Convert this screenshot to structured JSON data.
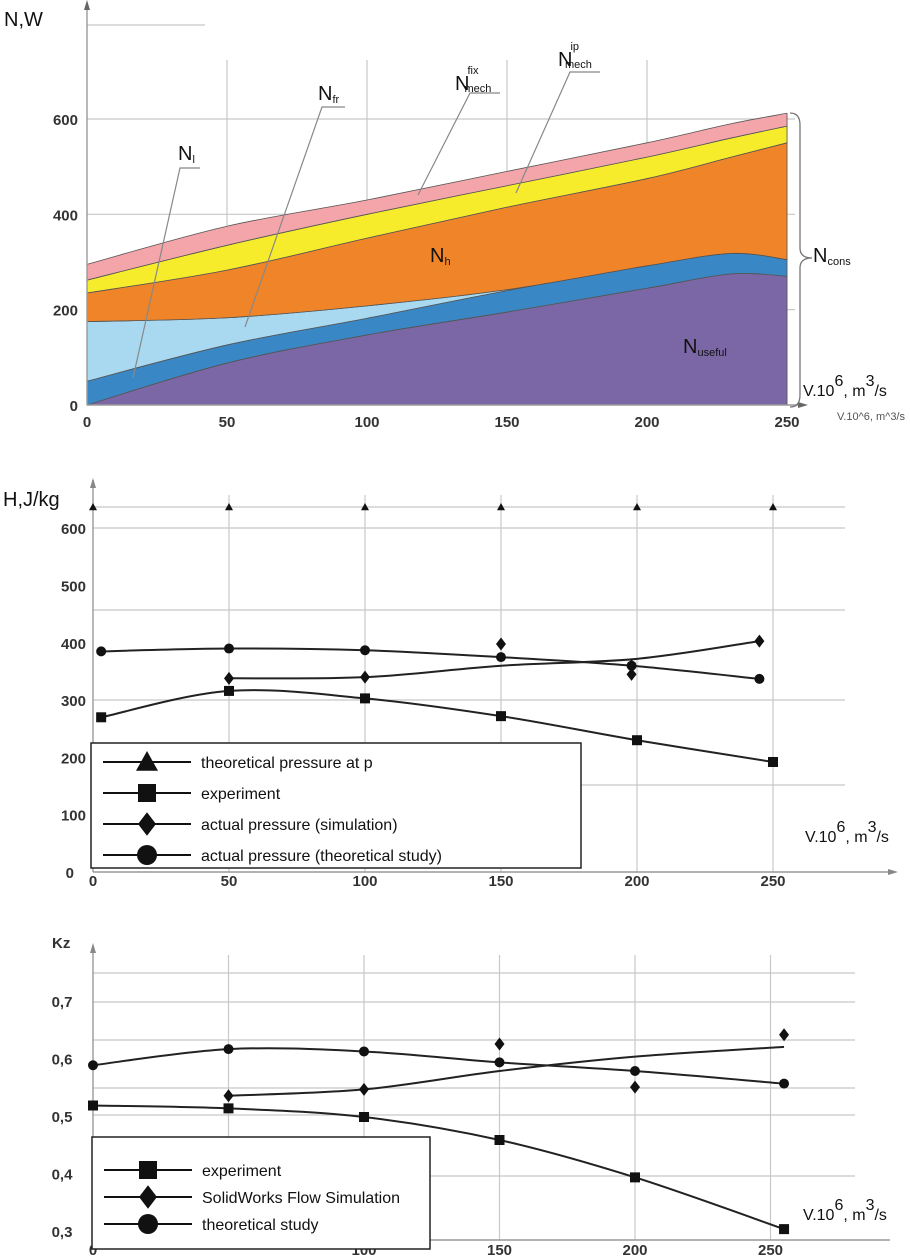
{
  "chart_data": [
    {
      "type": "area",
      "title": "",
      "ylabel": "N,W",
      "xlabel": "V.10^6, m^3/s",
      "xlabel_parts": {
        "a": "V.10",
        "b": "6",
        "c": ", m",
        "d": "3",
        "e": "/s"
      },
      "xlim": [
        0,
        250
      ],
      "ylim": [
        0,
        600
      ],
      "x_ticks": [
        "0",
        "50",
        "100",
        "150",
        "200",
        "250"
      ],
      "y_ticks": [
        "0",
        "200",
        "400",
        "600"
      ],
      "x": [
        0,
        50,
        100,
        150,
        200,
        230,
        250
      ],
      "stacked_upper_boundaries": [
        {
          "name": "N_useful",
          "label": "N",
          "sub": "useful",
          "color": "#7b67a5",
          "values": [
            0,
            88,
            147,
            195,
            245,
            275,
            270
          ]
        },
        {
          "name": "N_l",
          "label": "N",
          "sub": "l",
          "color": "#3a87c5",
          "values": [
            50,
            126,
            182,
            240,
            292,
            318,
            305
          ]
        },
        {
          "name": "N_fr",
          "label": "N",
          "sub": "fr",
          "color": "#a9d9f0",
          "values": [
            175,
            183,
            208,
            242,
            292,
            318,
            305
          ]
        },
        {
          "name": "N_h",
          "label": "N",
          "sub": "h",
          "color": "#f08428",
          "values": [
            235,
            283,
            350,
            415,
            475,
            520,
            550
          ]
        },
        {
          "name": "N_mech_ip",
          "label": "N",
          "sub": "mech",
          "sup": "ip",
          "color": "#f7ec2c",
          "values": [
            262,
            335,
            400,
            460,
            520,
            560,
            585
          ]
        },
        {
          "name": "N_mech_fix",
          "label": "N",
          "sub": "mech",
          "sup": "fix",
          "color": "#f3a5a9",
          "values": [
            295,
            375,
            430,
            490,
            550,
            590,
            612
          ]
        }
      ],
      "bracket_label": {
        "label": "N",
        "sub": "cons"
      }
    },
    {
      "type": "line",
      "ylabel": "H,J/kg",
      "xlabel_parts": {
        "a": "V.10",
        "b": "6",
        "c": ", m",
        "d": "3",
        "e": "/s"
      },
      "xlim": [
        0,
        250
      ],
      "ylim": [
        0,
        600
      ],
      "x_ticks": [
        "0",
        "50",
        "100",
        "150",
        "200",
        "250"
      ],
      "y_ticks": [
        "0",
        "100",
        "200",
        "300",
        "400",
        "500",
        "600"
      ],
      "series": [
        {
          "name": "theoretical pressure at p",
          "marker": "triangle",
          "x": [
            0,
            50,
            100,
            150,
            200,
            250
          ],
          "y": [
            637,
            637,
            637,
            637,
            637,
            637
          ],
          "curve": false
        },
        {
          "name": "experiment",
          "marker": "square",
          "x": [
            3,
            50,
            100,
            150,
            200,
            250
          ],
          "y": [
            270,
            316,
            303,
            272,
            230,
            192
          ],
          "curve": true
        },
        {
          "name": "actual pressure (simulation)",
          "marker": "diamond",
          "x": [
            50,
            100,
            150,
            198,
            198,
            245
          ],
          "y": [
            338,
            340,
            398,
            360,
            345,
            403
          ],
          "curve_x": [
            50,
            100,
            150,
            200,
            245
          ],
          "curve_y": [
            338,
            340,
            360,
            372,
            403
          ]
        },
        {
          "name": "actual pressure (theoretical study)",
          "marker": "circle",
          "x": [
            3,
            50,
            100,
            150,
            198,
            245
          ],
          "y": [
            385,
            390,
            387,
            375,
            360,
            337
          ],
          "curve": true
        }
      ]
    },
    {
      "type": "line",
      "ylabel": "Kz",
      "xlabel_parts": {
        "a": "V.10",
        "b": "6",
        "c": ", m",
        "d": "3",
        "e": "/s"
      },
      "xlim": [
        0,
        260
      ],
      "ylim": [
        0.3,
        0.75
      ],
      "x_ticks": [
        "0",
        "100",
        "150",
        "200",
        "250"
      ],
      "x_tick_values": [
        0,
        100,
        150,
        200,
        250
      ],
      "y_ticks": [
        "0,3",
        "0,4",
        "0,5",
        "0,6",
        "0,7"
      ],
      "series": [
        {
          "name": "experiment",
          "marker": "square",
          "x": [
            0,
            50,
            100,
            150,
            200,
            255
          ],
          "y": [
            0.52,
            0.515,
            0.5,
            0.46,
            0.395,
            0.305
          ],
          "curve": true
        },
        {
          "name": "SolidWorks Flow Simulation",
          "marker": "diamond",
          "x": [
            50,
            100,
            150,
            200,
            255
          ],
          "y": [
            0.537,
            0.548,
            0.627,
            0.552,
            0.643
          ],
          "curve_x": [
            50,
            100,
            150,
            200,
            255
          ],
          "curve_y": [
            0.537,
            0.548,
            0.58,
            0.605,
            0.622
          ]
        },
        {
          "name": "theoretical study",
          "marker": "circle",
          "x": [
            0,
            50,
            100,
            150,
            200,
            255
          ],
          "y": [
            0.59,
            0.618,
            0.614,
            0.595,
            0.58,
            0.558
          ],
          "curve": true
        }
      ]
    }
  ]
}
